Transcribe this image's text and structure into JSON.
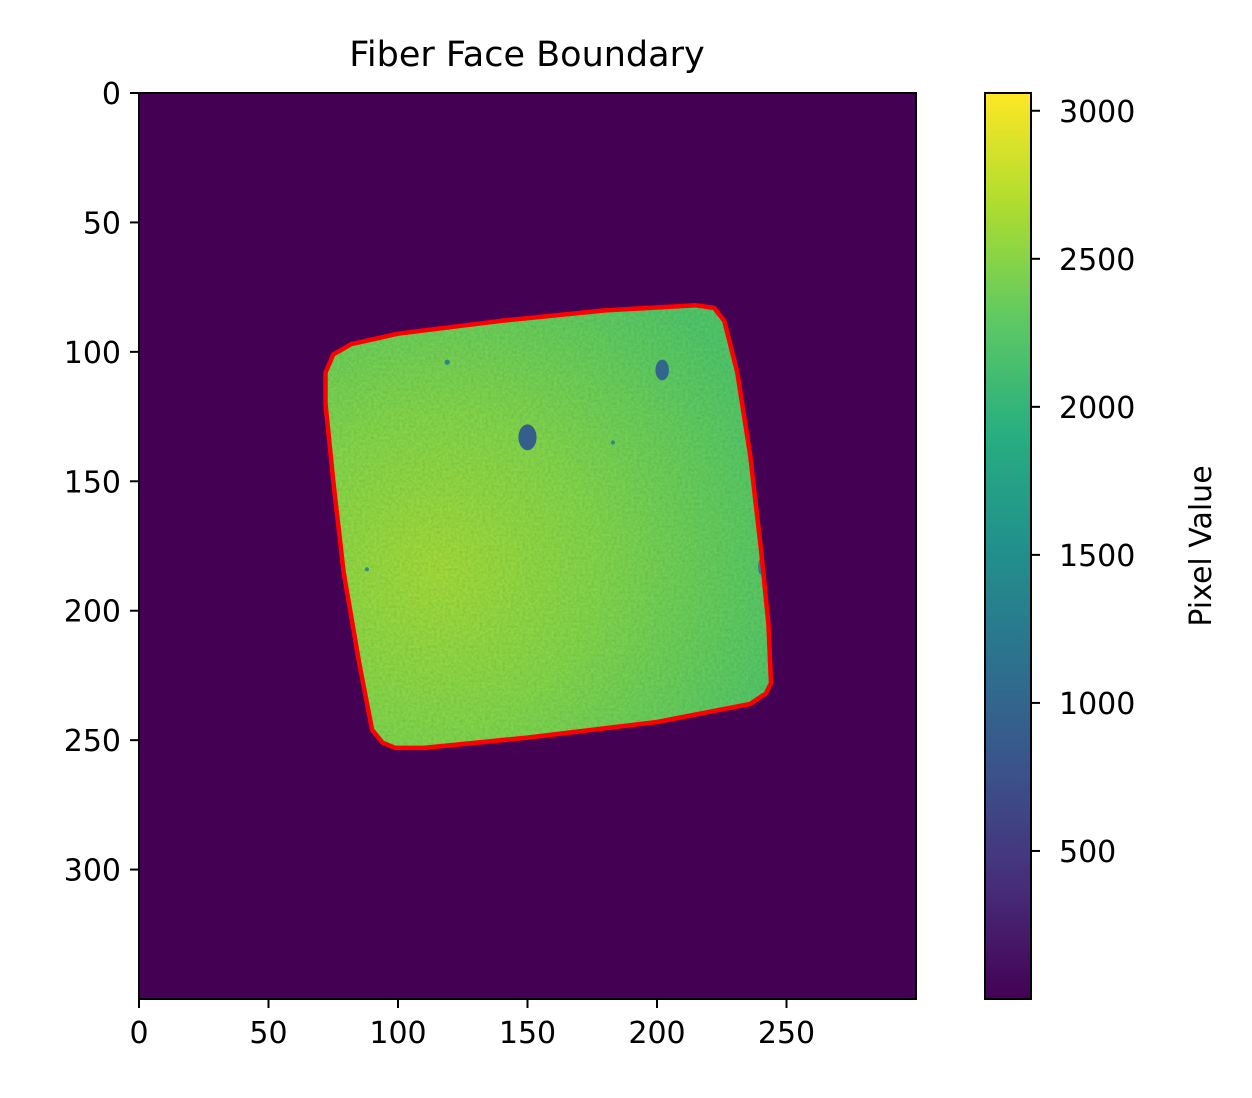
{
  "chart_data": {
    "type": "heatmap",
    "title": "Fiber Face Boundary",
    "xlabel": "",
    "ylabel": "",
    "x_range": [
      0,
      300
    ],
    "y_range": [
      350,
      0
    ],
    "x_ticks": [
      0,
      50,
      100,
      150,
      200,
      250
    ],
    "y_ticks": [
      0,
      50,
      100,
      150,
      200,
      250,
      300
    ],
    "colormap": "viridis",
    "colorbar": {
      "label": "Pixel Value",
      "range": [
        0,
        3060
      ],
      "ticks": [
        500,
        1000,
        1500,
        2000,
        2500,
        3000
      ]
    },
    "background_value": 0,
    "face_value_range": [
      2100,
      2700
    ],
    "boundary_color": "#ff0000",
    "boundary_polygon": [
      [
        72,
        108
      ],
      [
        75,
        101
      ],
      [
        82,
        97
      ],
      [
        100,
        93
      ],
      [
        140,
        88
      ],
      [
        180,
        84
      ],
      [
        215,
        82
      ],
      [
        222,
        83
      ],
      [
        226,
        88
      ],
      [
        231,
        108
      ],
      [
        236,
        140
      ],
      [
        240,
        175
      ],
      [
        243,
        205
      ],
      [
        244,
        228
      ],
      [
        242,
        232
      ],
      [
        236,
        236
      ],
      [
        200,
        243
      ],
      [
        150,
        249
      ],
      [
        110,
        253
      ],
      [
        99,
        253
      ],
      [
        94,
        251
      ],
      [
        90,
        246
      ],
      [
        85,
        220
      ],
      [
        79,
        185
      ],
      [
        75,
        150
      ],
      [
        72,
        120
      ]
    ],
    "defects": [
      {
        "x": 150,
        "y": 133,
        "rx": 3.5,
        "ry": 5,
        "value": 900
      },
      {
        "x": 202,
        "y": 107,
        "rx": 2.6,
        "ry": 4,
        "value": 1000
      },
      {
        "x": 119,
        "y": 104,
        "rx": 1.0,
        "ry": 1.0,
        "value": 1400
      },
      {
        "x": 183,
        "y": 135,
        "rx": 0.8,
        "ry": 0.8,
        "value": 1500
      },
      {
        "x": 88,
        "y": 184,
        "rx": 0.8,
        "ry": 0.8,
        "value": 1500
      },
      {
        "x": 240,
        "y": 183,
        "rx": 1.0,
        "ry": 3.0,
        "value": 1400
      }
    ]
  }
}
